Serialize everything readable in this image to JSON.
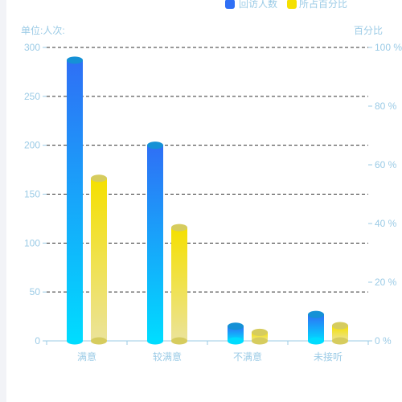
{
  "chart_data": {
    "type": "bar",
    "categories": [
      "满意",
      "较满意",
      "不满意",
      "未接听"
    ],
    "series": [
      {
        "name": "回访人数",
        "axis": "left",
        "values": [
          287,
          200,
          15,
          27
        ]
      },
      {
        "name": "所占百分比",
        "axis": "right",
        "values": [
          55.4,
          38.6,
          2.9,
          5.2
        ]
      }
    ],
    "y_left": {
      "label": "单位:人次:",
      "min": 0,
      "max": 300,
      "ticks": [
        0,
        50,
        100,
        150,
        200,
        250,
        300
      ]
    },
    "y_right": {
      "label": "百分比",
      "min": 0,
      "max": 100,
      "ticks": [
        "0 %",
        "20 %",
        "40 %",
        "60 %",
        "80 %",
        "100 %"
      ]
    },
    "grid": true,
    "legend_position": "top-right",
    "colors": {
      "series1_top": "#2f6ff5",
      "series1_bottom": "#00dcff",
      "series1_cap": "#1591d6",
      "series2_top": "#f5e000",
      "series2_bottom": "#ebe39a",
      "series2_cap": "#d6cc5e",
      "axis_text": "#9bcbe6",
      "grid": "#333333"
    }
  }
}
